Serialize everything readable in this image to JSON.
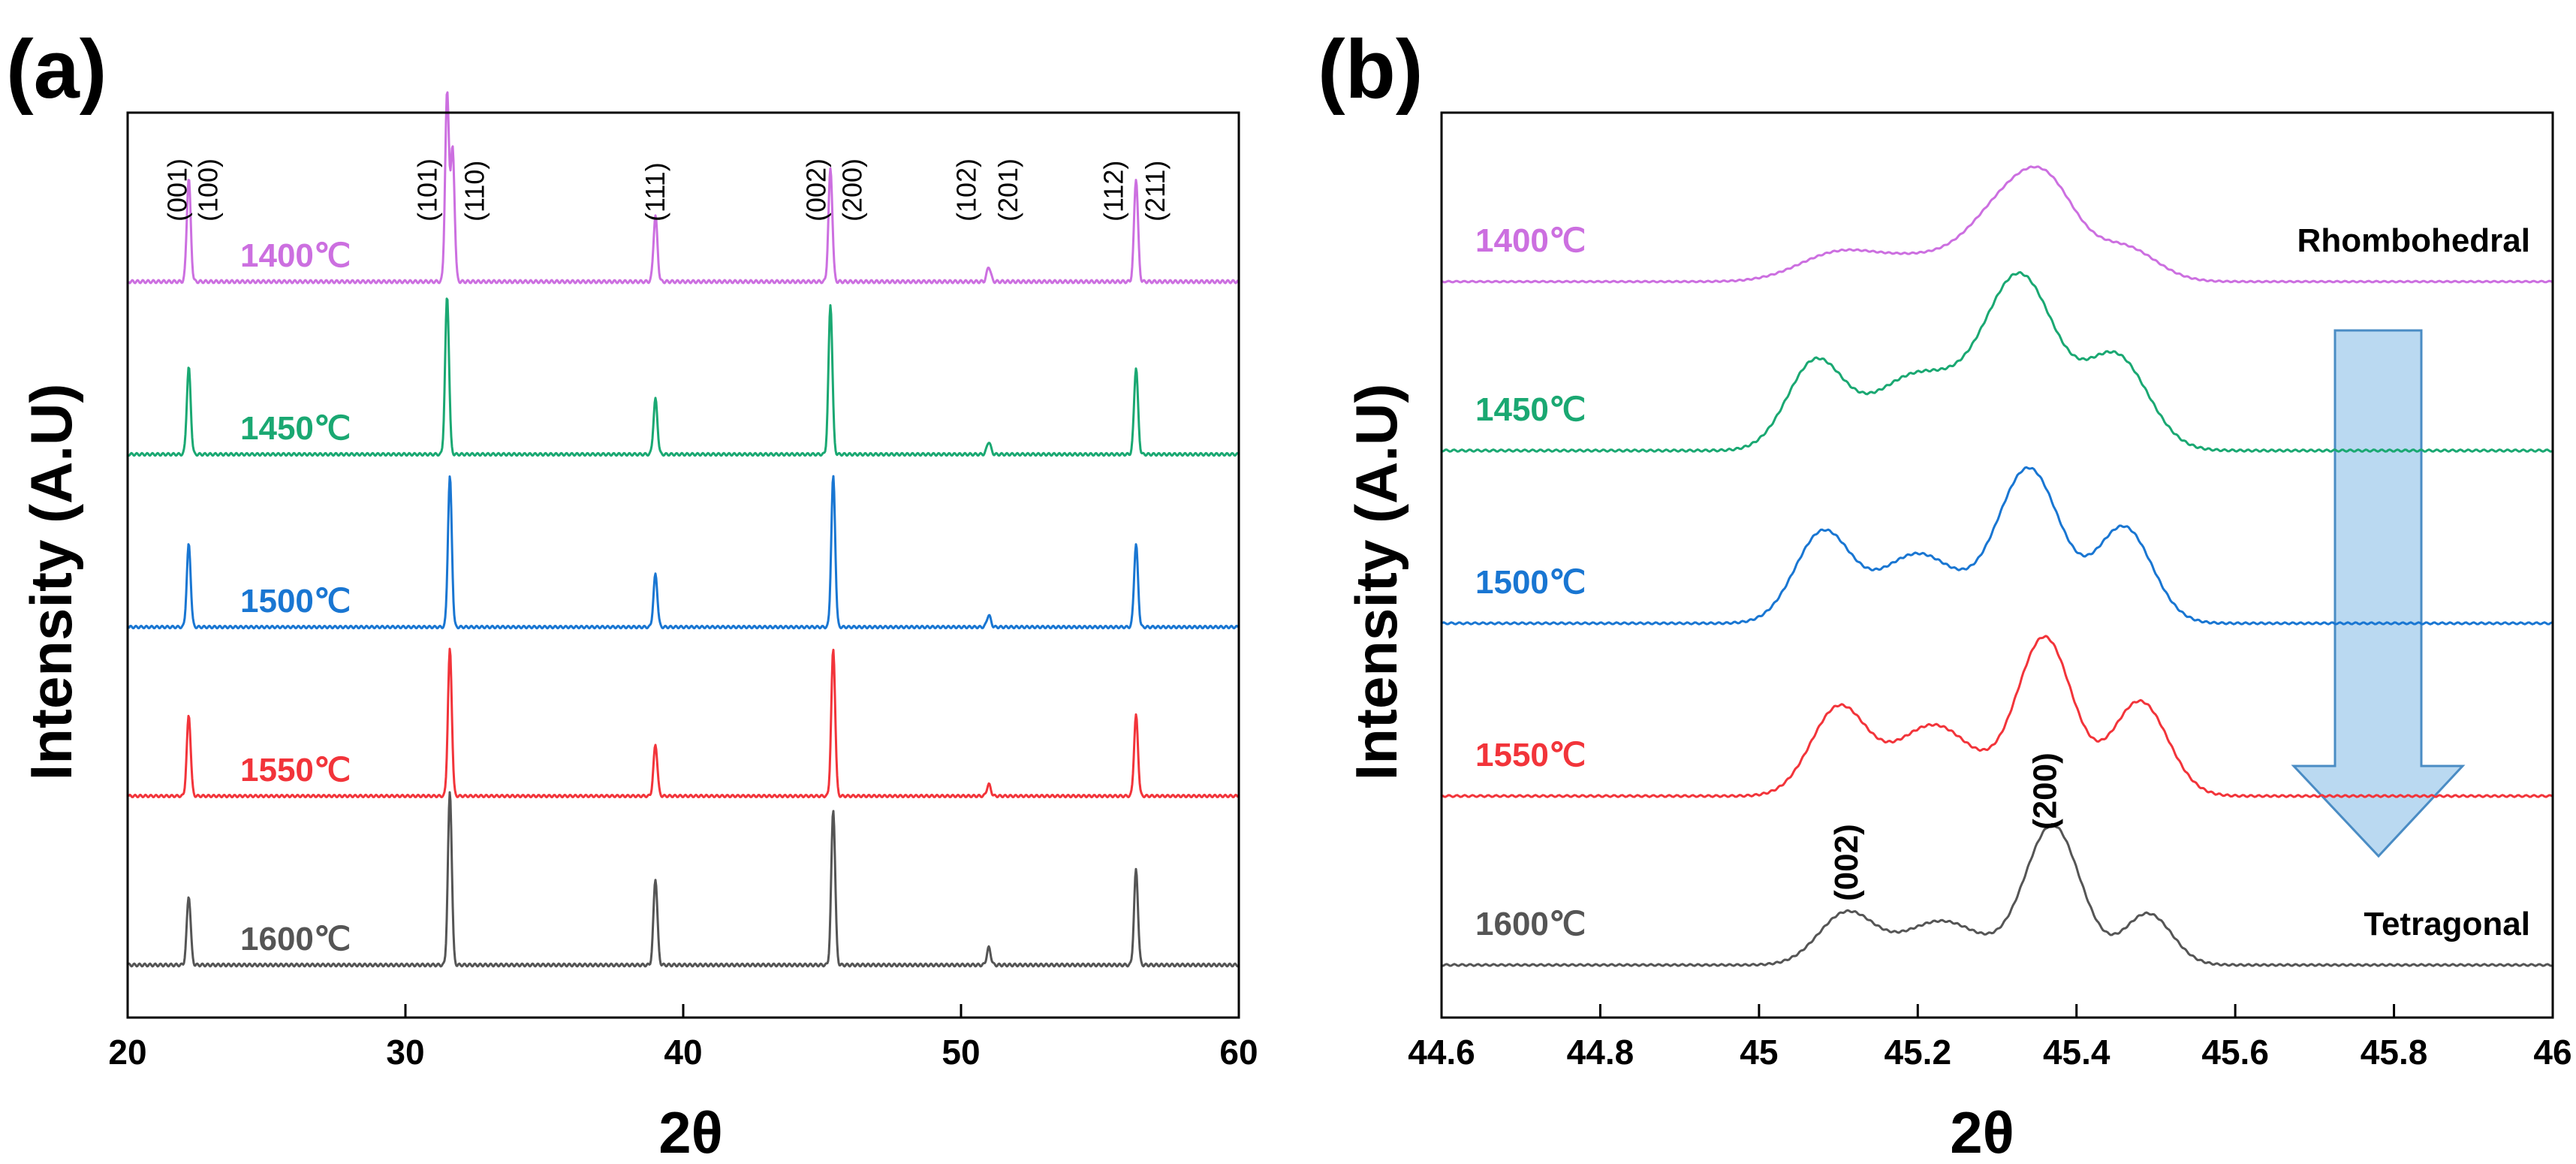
{
  "chart_data": [
    {
      "panel_label": "(a)",
      "type": "line",
      "title": "",
      "xlabel": "2θ",
      "ylabel": "Intensity (A.U)",
      "xlim": [
        20,
        60
      ],
      "xticks": [
        20,
        30,
        40,
        50,
        60
      ],
      "legend": "inline labels left of traces",
      "series": [
        {
          "name": "1400℃",
          "color": "#cc6fe0",
          "peaks": [
            [
              22.2,
              0.55
            ],
            [
              31.5,
              1.0
            ],
            [
              31.7,
              0.7
            ],
            [
              39.0,
              0.35
            ],
            [
              45.3,
              0.6
            ],
            [
              51.0,
              0.08
            ],
            [
              56.3,
              0.55
            ]
          ]
        },
        {
          "name": "1450℃",
          "color": "#1aa872",
          "peaks": [
            [
              22.2,
              0.55
            ],
            [
              31.5,
              1.0
            ],
            [
              39.0,
              0.35
            ],
            [
              45.3,
              0.95
            ],
            [
              51.0,
              0.08
            ],
            [
              56.3,
              0.55
            ]
          ]
        },
        {
          "name": "1500℃",
          "color": "#1976d2",
          "peaks": [
            [
              22.2,
              0.55
            ],
            [
              31.6,
              1.0
            ],
            [
              39.0,
              0.35
            ],
            [
              45.4,
              1.0
            ],
            [
              51.0,
              0.08
            ],
            [
              56.3,
              0.55
            ]
          ]
        },
        {
          "name": "1550℃",
          "color": "#f2343a",
          "peaks": [
            [
              22.2,
              0.55
            ],
            [
              31.6,
              1.0
            ],
            [
              39.0,
              0.35
            ],
            [
              45.4,
              1.0
            ],
            [
              51.0,
              0.08
            ],
            [
              56.3,
              0.55
            ]
          ]
        },
        {
          "name": "1600℃",
          "color": "#555555",
          "peaks": [
            [
              22.2,
              0.4
            ],
            [
              31.6,
              1.0
            ],
            [
              39.0,
              0.5
            ],
            [
              45.4,
              0.9
            ],
            [
              51.0,
              0.1
            ],
            [
              56.3,
              0.55
            ]
          ]
        }
      ],
      "annotations": [
        {
          "text": "(001)",
          "x": 21.8
        },
        {
          "text": "(100)",
          "x": 22.9
        },
        {
          "text": "(101)",
          "x": 30.8
        },
        {
          "text": "(110)",
          "x": 32.5
        },
        {
          "text": "(111)",
          "x": 39.0
        },
        {
          "text": "(002)",
          "x": 44.8
        },
        {
          "text": "(200)",
          "x": 46.1
        },
        {
          "text": "(102)",
          "x": 50.2
        },
        {
          "text": "(201)",
          "x": 51.7
        },
        {
          "text": "(112)",
          "x": 55.5
        },
        {
          "text": "(211)",
          "x": 57.0
        }
      ]
    },
    {
      "panel_label": "(b)",
      "type": "line",
      "title": "",
      "xlabel": "2θ",
      "ylabel": "Intensity (A.U)",
      "xlim": [
        44.6,
        46
      ],
      "xticks": [
        44.6,
        44.8,
        45,
        45.2,
        45.4,
        45.6,
        45.8,
        46
      ],
      "xtick_labels": [
        "44.6",
        "44.8",
        "45",
        "45.2",
        "45.4",
        "45.6",
        "45.8",
        "46"
      ],
      "legend": "inline labels left of traces",
      "series": [
        {
          "name": "1400℃",
          "color": "#cc6fe0",
          "peaks": [
            [
              45.1,
              0.25,
              0.05
            ],
            [
              45.2,
              0.18,
              0.05
            ],
            [
              45.32,
              0.75,
              0.05
            ],
            [
              45.37,
              0.45,
              0.035
            ],
            [
              45.46,
              0.3,
              0.04
            ]
          ]
        },
        {
          "name": "1450℃",
          "color": "#1aa872",
          "peaks": [
            [
              45.07,
              0.5,
              0.035
            ],
            [
              45.2,
              0.45,
              0.06
            ],
            [
              45.33,
              1.0,
              0.045
            ],
            [
              45.45,
              0.55,
              0.04
            ]
          ]
        },
        {
          "name": "1500℃",
          "color": "#1976d2",
          "peaks": [
            [
              45.08,
              0.58,
              0.035
            ],
            [
              45.2,
              0.45,
              0.05
            ],
            [
              45.34,
              1.0,
              0.04
            ],
            [
              45.46,
              0.62,
              0.035
            ]
          ]
        },
        {
          "name": "1550℃",
          "color": "#f2343a",
          "peaks": [
            [
              45.1,
              0.55,
              0.035
            ],
            [
              45.22,
              0.45,
              0.05
            ],
            [
              45.36,
              1.0,
              0.035
            ],
            [
              45.48,
              0.6,
              0.035
            ]
          ]
        },
        {
          "name": "1600℃",
          "color": "#555555",
          "peaks": [
            [
              45.11,
              0.35,
              0.035
            ],
            [
              45.23,
              0.3,
              0.05
            ],
            [
              45.37,
              0.95,
              0.035
            ],
            [
              45.49,
              0.35,
              0.03
            ]
          ]
        }
      ],
      "annotations": [
        {
          "text": "(002)",
          "x": 45.11
        },
        {
          "text": "(200)",
          "x": 45.36
        },
        {
          "text": "Rhombohedral",
          "attached_to": "1400℃"
        },
        {
          "text": "Tetragonal",
          "attached_to": "1600℃"
        }
      ],
      "arrow": {
        "direction": "down",
        "from_series": "1400℃",
        "to_series": "1600℃"
      }
    }
  ]
}
